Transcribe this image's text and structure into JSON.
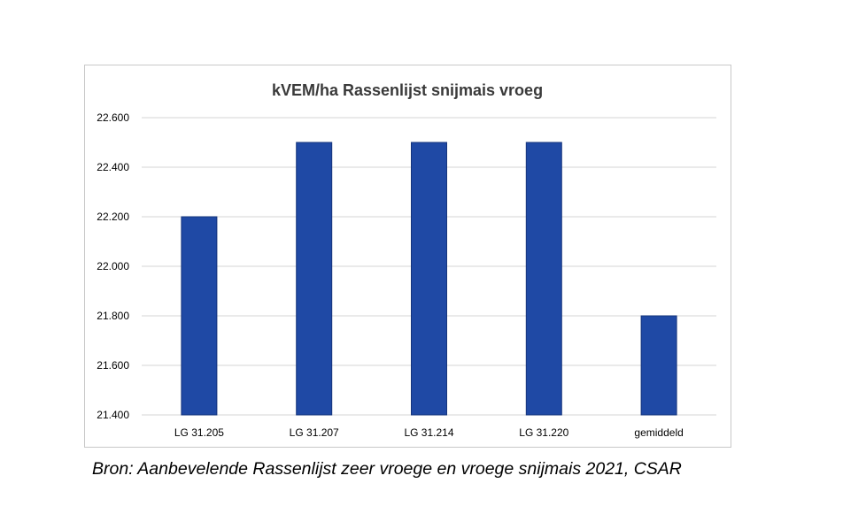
{
  "chart_data": {
    "type": "bar",
    "title": "kVEM/ha Rassenlijst snijmais vroeg",
    "xlabel": "",
    "ylabel": "",
    "categories": [
      "LG 31.205",
      "LG 31.207",
      "LG 31.214",
      "LG 31.220",
      "gemiddeld"
    ],
    "values": [
      22200,
      22500,
      22500,
      22500,
      21800
    ],
    "ylim": [
      21400,
      22600
    ],
    "yticks": [
      21400,
      21600,
      21800,
      22000,
      22200,
      22400,
      22600
    ],
    "ytick_labels": [
      "21.400",
      "21.600",
      "21.800",
      "22.000",
      "22.200",
      "22.400",
      "22.600"
    ],
    "grid": true,
    "legend": "none",
    "bar_color": "#1f49a5",
    "bar_border_color": "#16357c",
    "grid_color": "#d6d6d6"
  },
  "caption": "Bron: Aanbevelende Rassenlijst zeer vroege en vroege snijmais 2021, CSAR"
}
